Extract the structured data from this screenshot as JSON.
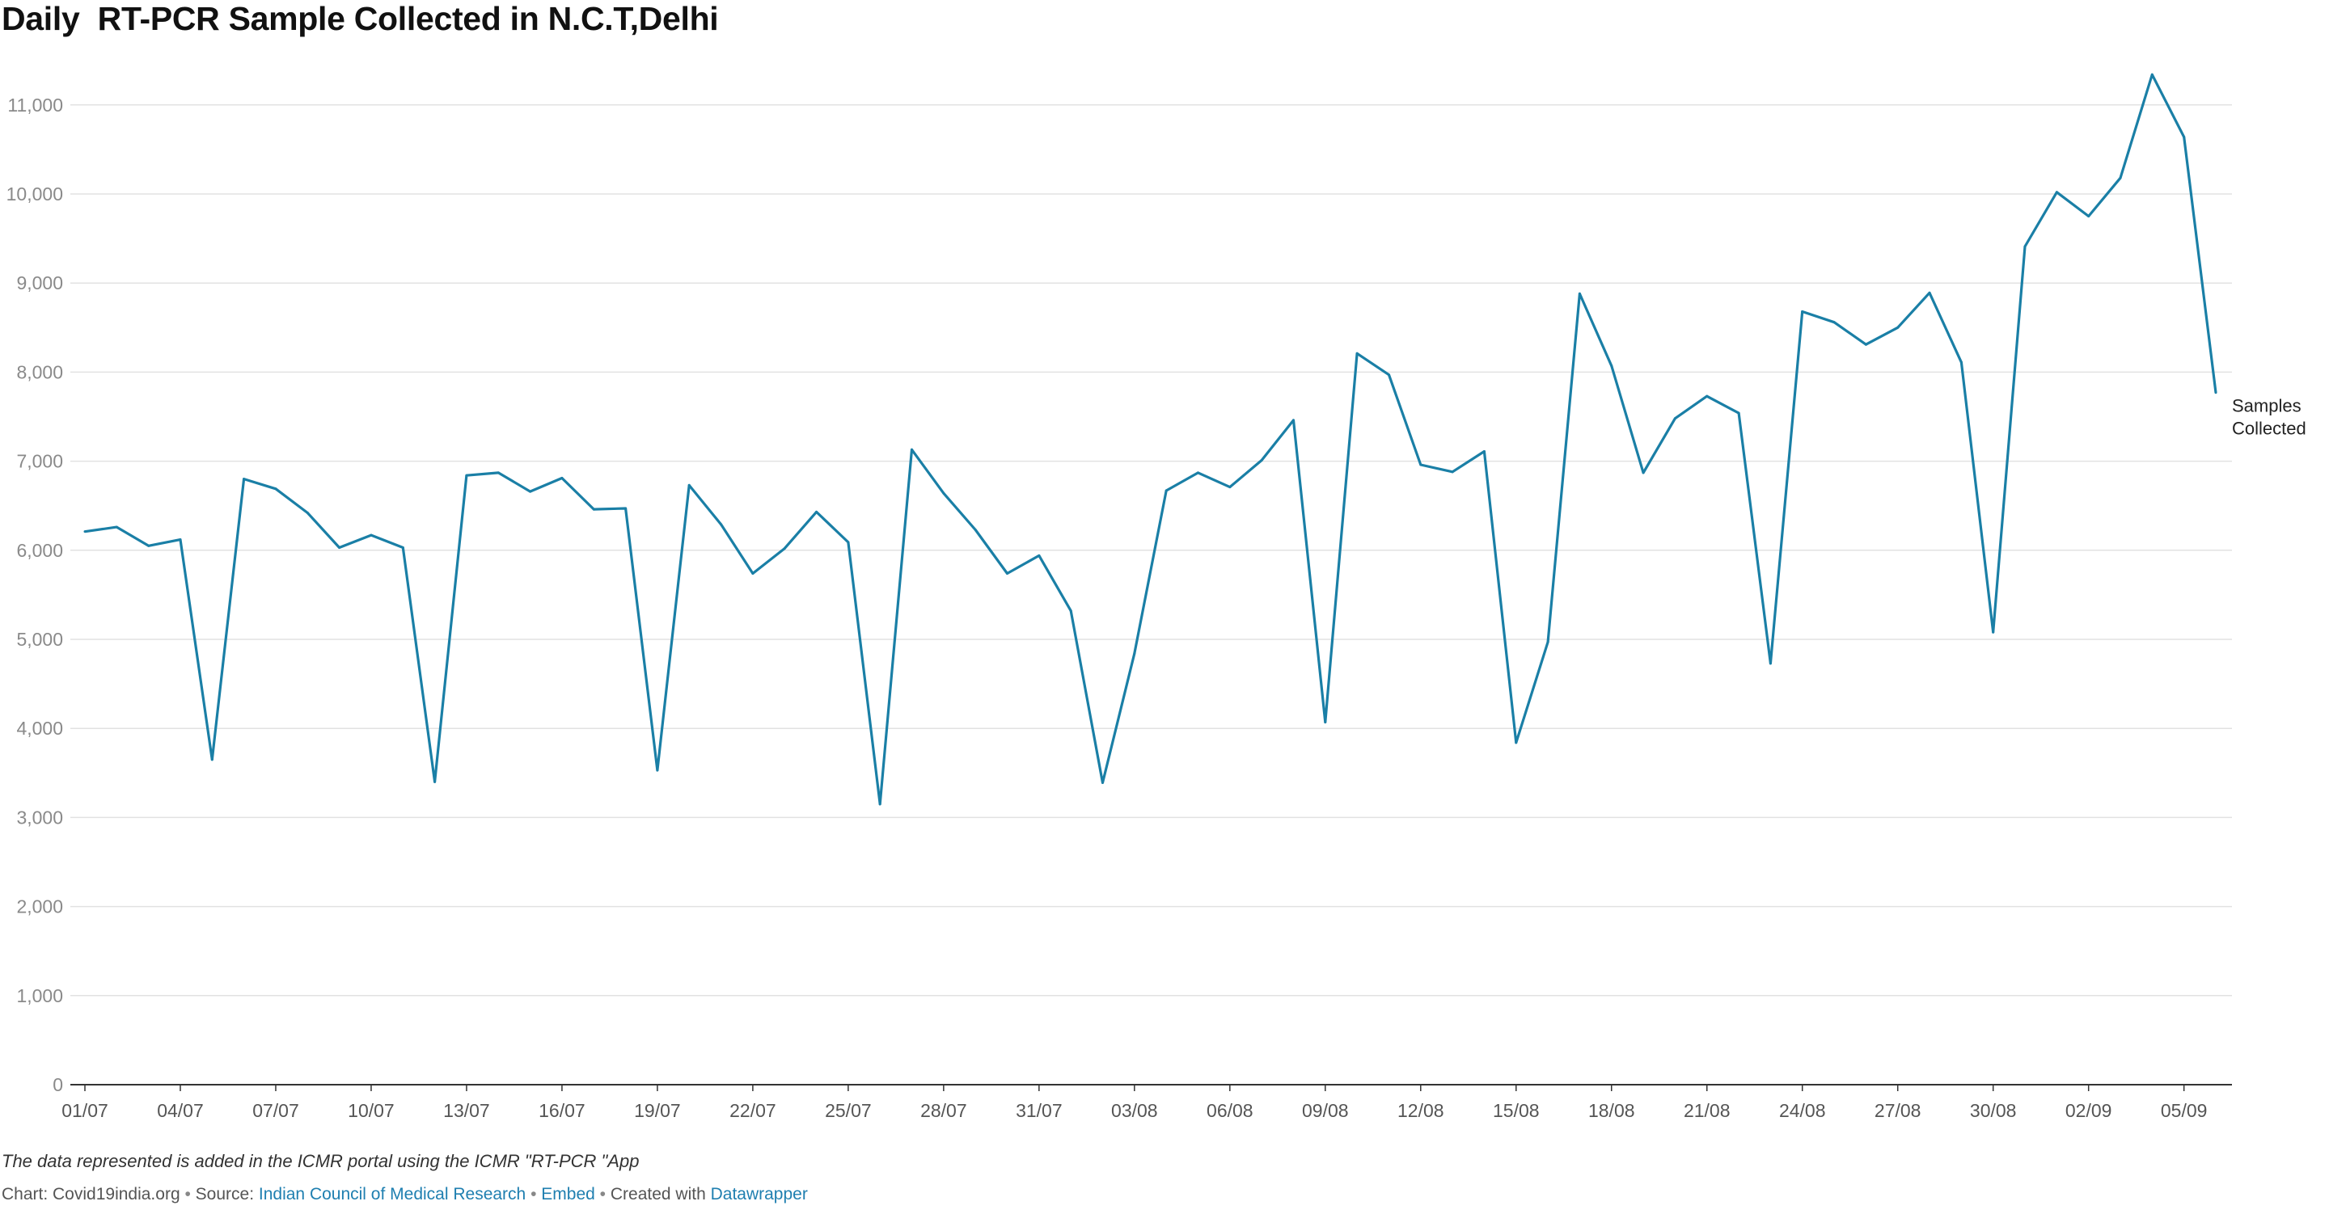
{
  "header": {
    "title": "Daily  RT-PCR Sample Collected in N.C.T,Delhi"
  },
  "notes": "The data represented is added in the ICMR portal using the ICMR \"RT-PCR \"App",
  "footer": {
    "chart_prefix": "Chart: Covid19india.org",
    "source_prefix": "Source:",
    "source_link": "Indian Council of Medical Research",
    "embed_link": "Embed",
    "created_prefix": "Created with",
    "created_link": "Datawrapper"
  },
  "colors": {
    "line": "#1a7fa6",
    "grid": "#e2e2e2",
    "axis": "#333333"
  },
  "chart_data": {
    "type": "line",
    "title": "Daily  RT-PCR Sample Collected in N.C.T,Delhi",
    "xlabel": "",
    "ylabel": "",
    "ylim": [
      0,
      11500
    ],
    "grid": true,
    "legend": "none",
    "y_ticks": [
      0,
      1000,
      2000,
      3000,
      4000,
      5000,
      6000,
      7000,
      8000,
      9000,
      10000,
      11000
    ],
    "y_tick_labels": [
      "0",
      "1,000",
      "2,000",
      "3,000",
      "4,000",
      "5,000",
      "6,000",
      "7,000",
      "8,000",
      "9,000",
      "10,000",
      "11,000"
    ],
    "x_tick_labels": [
      "01/07",
      "04/07",
      "07/07",
      "10/07",
      "13/07",
      "16/07",
      "19/07",
      "22/07",
      "25/07",
      "28/07",
      "31/07",
      "03/08",
      "06/08",
      "09/08",
      "12/08",
      "15/08",
      "18/08",
      "21/08",
      "24/08",
      "27/08",
      "30/08",
      "02/09",
      "05/09"
    ],
    "x": [
      "01/07",
      "02/07",
      "03/07",
      "04/07",
      "05/07",
      "06/07",
      "07/07",
      "08/07",
      "09/07",
      "10/07",
      "11/07",
      "12/07",
      "13/07",
      "14/07",
      "15/07",
      "16/07",
      "17/07",
      "18/07",
      "19/07",
      "20/07",
      "21/07",
      "22/07",
      "23/07",
      "24/07",
      "25/07",
      "26/07",
      "27/07",
      "28/07",
      "29/07",
      "30/07",
      "31/07",
      "01/08",
      "02/08",
      "03/08",
      "04/08",
      "05/08",
      "06/08",
      "07/08",
      "08/08",
      "09/08",
      "10/08",
      "11/08",
      "12/08",
      "13/08",
      "14/08",
      "15/08",
      "16/08",
      "17/08",
      "18/08",
      "19/08",
      "20/08",
      "21/08",
      "22/08",
      "23/08",
      "24/08",
      "25/08",
      "26/08",
      "27/08",
      "28/08",
      "29/08",
      "30/08",
      "31/08",
      "01/09",
      "02/09",
      "03/09",
      "04/09",
      "05/09",
      "06/09"
    ],
    "series": [
      {
        "name": "Samples Collected",
        "values": [
          6210,
          6260,
          6050,
          6120,
          3650,
          6800,
          6690,
          6420,
          6030,
          6170,
          6030,
          3400,
          6840,
          6870,
          6660,
          6810,
          6460,
          6470,
          3530,
          6730,
          6290,
          5740,
          6020,
          6430,
          6090,
          3150,
          7130,
          6640,
          6230,
          5740,
          5940,
          5320,
          3390,
          4840,
          6670,
          6870,
          6710,
          7010,
          7460,
          4070,
          8210,
          7970,
          6960,
          6880,
          7110,
          3840,
          4970,
          8880,
          8070,
          6870,
          7480,
          7730,
          7540,
          4730,
          8680,
          8560,
          8310,
          8500,
          8890,
          8110,
          5080,
          9410,
          10020,
          9750,
          10180,
          11340,
          10640,
          7770
        ]
      }
    ]
  }
}
